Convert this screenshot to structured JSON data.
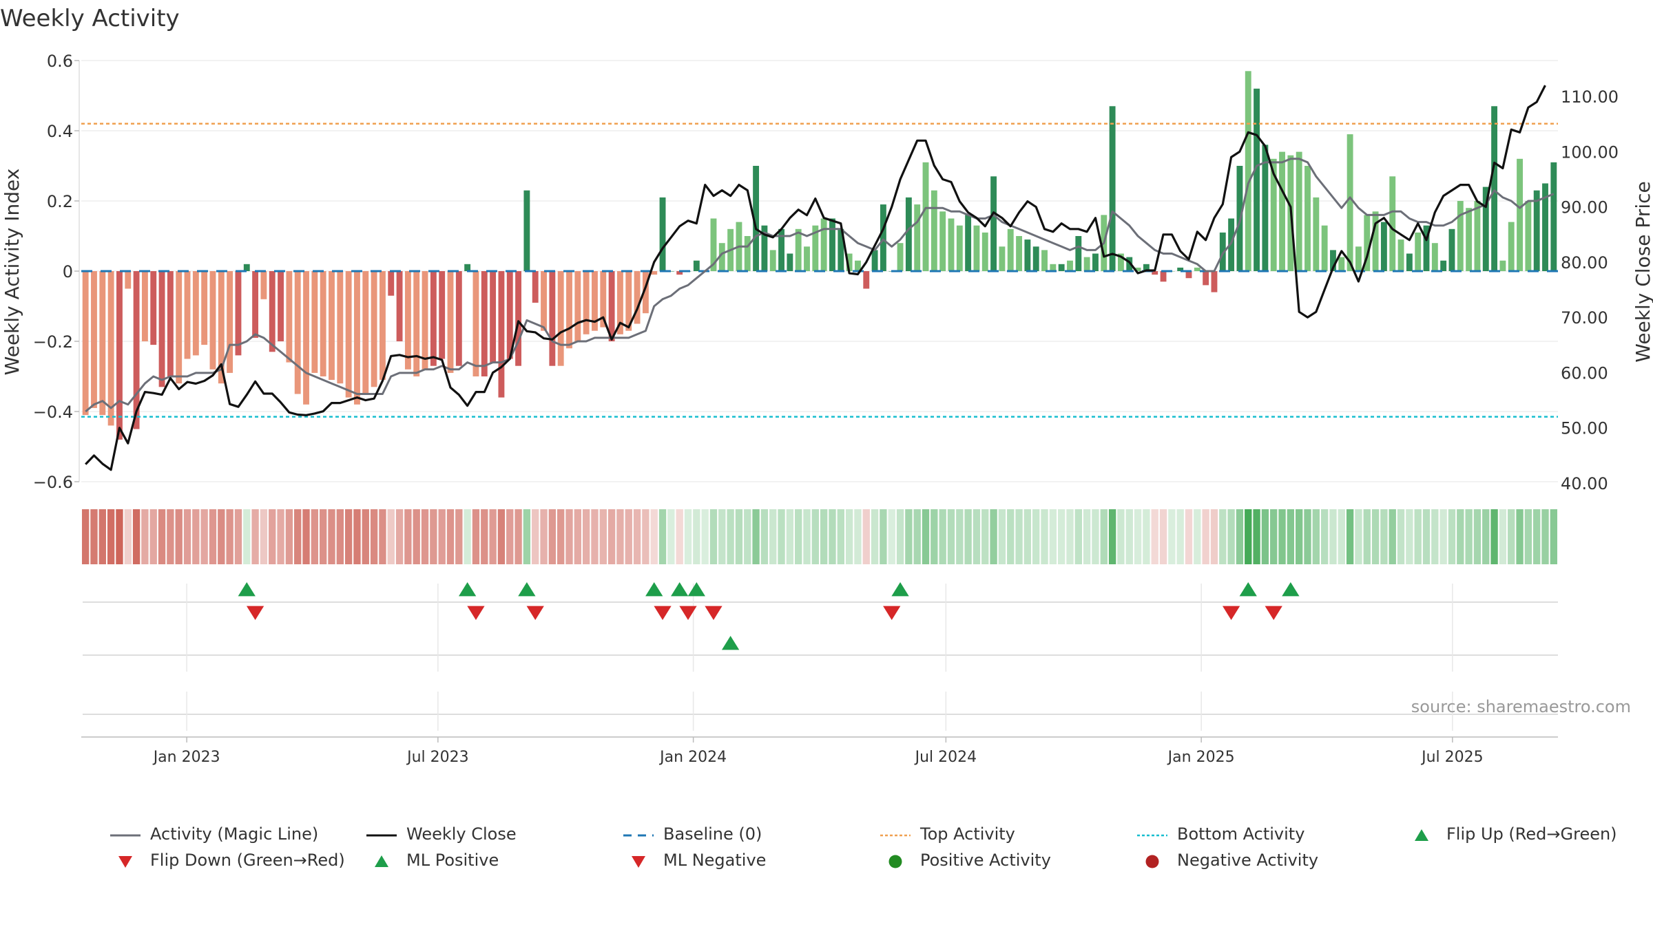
{
  "title": "Weekly Activity",
  "y_left_label": "Weekly Activity Index",
  "y_right_label": "Weekly Close Price",
  "y_left_ticks": [
    "0.6",
    "0.4",
    "0.2",
    "0",
    "−0.2",
    "−0.4",
    "−0.6"
  ],
  "y_right_ticks": [
    "110.00",
    "100.00",
    "90.00",
    "80.00",
    "70.00",
    "60.00",
    "50.00",
    "40.00"
  ],
  "x_ticks": [
    "Jan 2023",
    "Jul 2023",
    "Jan 2024",
    "Jul 2024",
    "Jan 2025",
    "Jul 2025"
  ],
  "source": "source: sharemaestro.com",
  "colors": {
    "strong_green": "#2e8b57",
    "light_green": "#7cc47c",
    "strong_red": "#cd5c5c",
    "light_red": "#e9967a",
    "magic_line": "#6c6f78",
    "close_line": "#111111",
    "baseline": "#1f77b4",
    "top_line": "#f0a050",
    "bottom_line": "#17becf",
    "flip_up": "#1e9e4a",
    "flip_down": "#d62728"
  },
  "legend": [
    {
      "key": "magic",
      "label": "Activity (Magic Line)"
    },
    {
      "key": "close",
      "label": "Weekly Close"
    },
    {
      "key": "baseline",
      "label": "Baseline (0)"
    },
    {
      "key": "top",
      "label": "Top Activity"
    },
    {
      "key": "bottom",
      "label": "Bottom Activity"
    },
    {
      "key": "flipup",
      "label": "Flip Up (Red→Green)"
    },
    {
      "key": "flipdown",
      "label": "Flip Down (Green→Red)"
    },
    {
      "key": "mlpos",
      "label": "ML Positive"
    },
    {
      "key": "mlneg",
      "label": "ML Negative"
    },
    {
      "key": "posact",
      "label": "Positive Activity"
    },
    {
      "key": "negact",
      "label": "Negative Activity"
    }
  ],
  "chart_data": {
    "type": "bar",
    "title": "Weekly Activity",
    "ylabel": "Weekly Activity Index",
    "y2label": "Weekly Close Price",
    "ylim": [
      -0.6,
      0.6
    ],
    "y2lim": [
      40,
      115
    ],
    "x_range": [
      "2022-10-17",
      "2025-09-15"
    ],
    "top_activity": 0.42,
    "bottom_activity": -0.415,
    "baseline": 0,
    "activity": [
      -0.41,
      -0.39,
      -0.41,
      -0.44,
      -0.48,
      -0.05,
      -0.45,
      -0.2,
      -0.21,
      -0.33,
      -0.3,
      -0.32,
      -0.25,
      -0.24,
      -0.21,
      -0.28,
      -0.32,
      -0.29,
      -0.24,
      0.02,
      -0.19,
      -0.08,
      -0.23,
      -0.2,
      -0.26,
      -0.35,
      -0.38,
      -0.29,
      -0.3,
      -0.31,
      -0.32,
      -0.36,
      -0.38,
      -0.35,
      -0.33,
      -0.31,
      -0.07,
      -0.2,
      -0.28,
      -0.3,
      -0.28,
      -0.27,
      -0.25,
      -0.29,
      -0.27,
      0.02,
      -0.3,
      -0.3,
      -0.26,
      -0.36,
      -0.25,
      -0.27,
      0.23,
      -0.09,
      -0.17,
      -0.27,
      -0.27,
      -0.22,
      -0.2,
      -0.18,
      -0.17,
      -0.16,
      -0.2,
      -0.18,
      -0.17,
      -0.15,
      -0.12,
      -0.01,
      0.21,
      0.0,
      -0.01,
      0.0,
      0.03,
      0.0,
      0.15,
      0.08,
      0.12,
      0.14,
      0.1,
      0.3,
      0.13,
      0.06,
      0.12,
      0.05,
      0.12,
      0.07,
      0.13,
      0.15,
      0.15,
      0.12,
      0.05,
      0.03,
      -0.05,
      0.06,
      0.19,
      0.0,
      0.08,
      0.21,
      0.19,
      0.31,
      0.23,
      0.17,
      0.15,
      0.13,
      0.16,
      0.13,
      0.11,
      0.27,
      0.07,
      0.12,
      0.1,
      0.09,
      0.07,
      0.06,
      0.02,
      0.02,
      0.03,
      0.1,
      0.04,
      0.05,
      0.16,
      0.47,
      0.05,
      0.04,
      0.01,
      0.02,
      -0.01,
      -0.03,
      0.0,
      0.01,
      -0.02,
      0.01,
      -0.04,
      -0.06,
      0.11,
      0.15,
      0.3,
      0.57,
      0.52,
      0.36,
      0.32,
      0.34,
      0.33,
      0.34,
      0.3,
      0.21,
      0.13,
      0.06,
      0.04,
      0.39,
      0.07,
      0.16,
      0.17,
      0.14,
      0.27,
      0.09,
      0.05,
      0.11,
      0.13,
      0.08,
      0.03,
      0.12,
      0.2,
      0.18,
      0.2,
      0.24,
      0.47,
      0.03,
      0.14,
      0.32,
      0.2,
      0.23,
      0.25,
      0.31
    ],
    "light_indices": [
      0,
      1,
      2,
      3,
      5,
      7,
      11,
      12,
      13,
      14,
      15,
      16,
      17,
      21,
      24,
      25,
      26,
      27,
      28,
      29,
      30,
      31,
      32,
      33,
      34,
      35,
      38,
      39,
      40,
      43,
      46,
      54,
      56,
      57,
      58,
      59,
      60,
      61,
      63,
      64,
      65,
      66,
      67,
      74,
      75,
      76,
      77,
      78,
      81,
      84,
      85,
      86,
      87,
      90,
      91,
      96,
      98,
      99,
      100,
      101,
      102,
      103,
      105,
      106,
      108,
      109,
      110,
      113,
      114,
      116,
      118,
      120,
      122,
      124,
      128,
      131,
      137,
      140,
      141,
      142,
      143,
      144,
      145,
      146,
      148,
      149,
      150,
      151,
      152,
      154,
      155,
      157,
      159,
      162,
      163,
      164,
      167,
      168,
      169,
      170,
      174,
      175,
      178,
      179
    ],
    "weekly_close": [
      43.4,
      45.0,
      43.5,
      42.4,
      50.0,
      47.2,
      53.0,
      56.5,
      56.3,
      56.0,
      59.0,
      57.0,
      58.3,
      58.0,
      58.5,
      59.5,
      61.5,
      54.3,
      53.8,
      56.0,
      58.4,
      56.2,
      56.2,
      54.6,
      52.8,
      52.4,
      52.3,
      52.6,
      53.0,
      54.5,
      54.5,
      55.0,
      55.5,
      55.0,
      55.3,
      58.5,
      63.0,
      63.2,
      62.8,
      63.0,
      62.5,
      62.8,
      62.3,
      57.3,
      56.0,
      54.0,
      56.5,
      56.5,
      60.0,
      61.0,
      62.5,
      69.3,
      67.5,
      67.3,
      66.2,
      66.0,
      67.3,
      68.0,
      69.0,
      69.5,
      69.2,
      70.0,
      66.0,
      69.0,
      68.2,
      71.5,
      75.5,
      80.0,
      82.5,
      84.5,
      86.5,
      87.5,
      87.0,
      94.0,
      92.0,
      93.0,
      92.0,
      94.0,
      93.0,
      86.0,
      85.0,
      84.5,
      86.0,
      88.0,
      89.5,
      88.5,
      91.5,
      88.0,
      87.5,
      87.0,
      78.0,
      77.8,
      80.0,
      83.0,
      86.0,
      90.0,
      95.0,
      98.5,
      102.0,
      102.0,
      97.5,
      95.0,
      94.5,
      91.0,
      89.0,
      88.0,
      86.5,
      89.0,
      88.0,
      86.5,
      89.0,
      91.0,
      90.0,
      86.0,
      85.5,
      87.0,
      86.0,
      86.0,
      85.5,
      88.0,
      81.0,
      81.5,
      81.0,
      80.0,
      78.0,
      78.5,
      78.5,
      85.0,
      85.0,
      82.0,
      80.5,
      85.5,
      84.0,
      88.0,
      90.5,
      99.0,
      100.0,
      103.5,
      103.0,
      101.0,
      96.0,
      93.0,
      90.0,
      71.0,
      70.0,
      71.0,
      75.0,
      79.0,
      82.0,
      80.0,
      76.5,
      81.0,
      87.0,
      88.0,
      86.0,
      85.0,
      84.0,
      87.0,
      84.0,
      89.0,
      92.0,
      93.0,
      94.0,
      94.0,
      91.0,
      90.0,
      98.0,
      97.0,
      104.0,
      103.5,
      108.0,
      109.0,
      112.0
    ],
    "magic_line": [
      -0.4,
      -0.38,
      -0.37,
      -0.39,
      -0.37,
      -0.38,
      -0.35,
      -0.32,
      -0.3,
      -0.31,
      -0.3,
      -0.3,
      -0.3,
      -0.29,
      -0.29,
      -0.29,
      -0.28,
      -0.21,
      -0.21,
      -0.2,
      -0.18,
      -0.19,
      -0.21,
      -0.23,
      -0.25,
      -0.27,
      -0.29,
      -0.3,
      -0.31,
      -0.32,
      -0.33,
      -0.34,
      -0.35,
      -0.35,
      -0.35,
      -0.35,
      -0.3,
      -0.29,
      -0.29,
      -0.29,
      -0.28,
      -0.28,
      -0.27,
      -0.28,
      -0.28,
      -0.26,
      -0.27,
      -0.27,
      -0.26,
      -0.26,
      -0.25,
      -0.2,
      -0.14,
      -0.15,
      -0.16,
      -0.2,
      -0.21,
      -0.21,
      -0.2,
      -0.2,
      -0.19,
      -0.19,
      -0.19,
      -0.19,
      -0.19,
      -0.18,
      -0.17,
      -0.1,
      -0.08,
      -0.07,
      -0.05,
      -0.04,
      -0.02,
      0.0,
      0.02,
      0.05,
      0.06,
      0.07,
      0.07,
      0.1,
      0.11,
      0.1,
      0.1,
      0.1,
      0.11,
      0.1,
      0.11,
      0.12,
      0.12,
      0.12,
      0.1,
      0.08,
      0.07,
      0.06,
      0.09,
      0.07,
      0.09,
      0.12,
      0.14,
      0.18,
      0.18,
      0.18,
      0.17,
      0.17,
      0.16,
      0.15,
      0.15,
      0.16,
      0.14,
      0.13,
      0.12,
      0.11,
      0.1,
      0.09,
      0.08,
      0.07,
      0.06,
      0.07,
      0.06,
      0.06,
      0.08,
      0.17,
      0.15,
      0.13,
      0.1,
      0.08,
      0.06,
      0.05,
      0.05,
      0.04,
      0.03,
      0.02,
      0.0,
      0.0,
      0.05,
      0.08,
      0.14,
      0.25,
      0.3,
      0.31,
      0.31,
      0.31,
      0.32,
      0.32,
      0.31,
      0.27,
      0.24,
      0.21,
      0.18,
      0.21,
      0.18,
      0.16,
      0.16,
      0.16,
      0.17,
      0.17,
      0.15,
      0.14,
      0.14,
      0.13,
      0.13,
      0.14,
      0.16,
      0.17,
      0.18,
      0.19,
      0.23,
      0.21,
      0.2,
      0.18,
      0.2,
      0.2,
      0.21,
      0.22
    ],
    "flip_up_indices": [
      19,
      45,
      52,
      67,
      70,
      72,
      96,
      137,
      142
    ],
    "flip_down_indices": [
      20,
      46,
      53,
      68,
      71,
      74,
      95,
      135,
      140
    ],
    "ml_positive_indices": [
      76
    ],
    "ml_negative_indices": []
  }
}
